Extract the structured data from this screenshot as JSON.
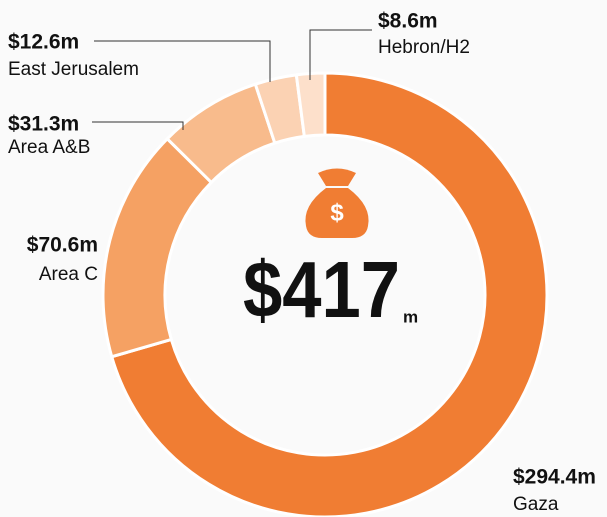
{
  "chart_data": {
    "type": "donut",
    "categories": [
      "Gaza",
      "Area C",
      "Area A&B",
      "East Jerusalem",
      "Hebron/H2"
    ],
    "values": [
      294.4,
      70.6,
      31.3,
      12.6,
      8.6
    ],
    "value_labels": [
      "$294.4m",
      "$70.6m",
      "$31.3m",
      "$12.6m",
      "$8.6m"
    ],
    "colors": [
      "#f07d33",
      "#f5a163",
      "#f8bb8c",
      "#fbd2b3",
      "#fde0cb"
    ],
    "center_label": "$417",
    "center_unit": "m"
  }
}
